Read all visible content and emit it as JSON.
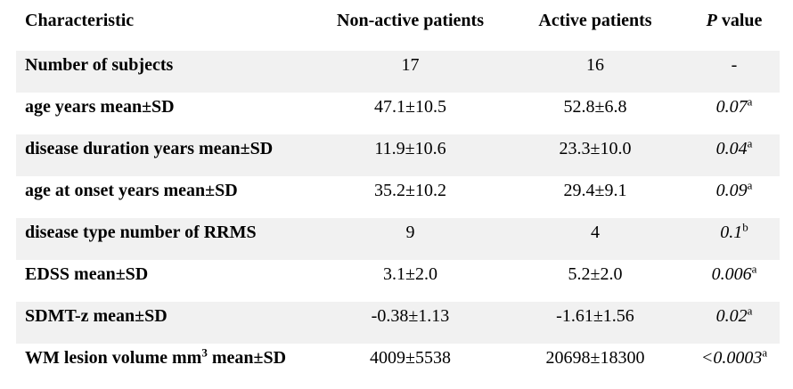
{
  "page": {
    "background_color": "#ffffff",
    "shaded_row_color": "#f1f1f1",
    "text_color": "#000000"
  },
  "table": {
    "header": {
      "characteristic": "Characteristic",
      "non_active": "Non-active patients",
      "active": "Active patients",
      "p_italic": "P",
      "p_rest": " value"
    },
    "rows": [
      {
        "label": "Number of subjects",
        "label_sup": "",
        "label_rest": "",
        "non_active": "17",
        "active": "16",
        "p": "-",
        "p_sup": "",
        "p_italic": false,
        "shaded": true
      },
      {
        "label": "age years mean±SD",
        "label_sup": "",
        "label_rest": "",
        "non_active": "47.1±10.5",
        "active": "52.8±6.8",
        "p": "0.07",
        "p_sup": "a",
        "p_italic": true,
        "shaded": false
      },
      {
        "label": "disease duration years mean±SD",
        "label_sup": "",
        "label_rest": "",
        "non_active": "11.9±10.6",
        "active": "23.3±10.0",
        "p": "0.04",
        "p_sup": "a",
        "p_italic": true,
        "shaded": true
      },
      {
        "label": "age at onset years mean±SD",
        "label_sup": "",
        "label_rest": "",
        "non_active": "35.2±10.2",
        "active": "29.4±9.1",
        "p": "0.09",
        "p_sup": "a",
        "p_italic": true,
        "shaded": false
      },
      {
        "label": "disease type number of RRMS",
        "label_sup": "",
        "label_rest": "",
        "non_active": "9",
        "active": "4",
        "p": "0.1",
        "p_sup": "b",
        "p_italic": true,
        "shaded": true
      },
      {
        "label": "EDSS mean±SD",
        "label_sup": "",
        "label_rest": "",
        "non_active": "3.1±2.0",
        "active": "5.2±2.0",
        "p": "0.006",
        "p_sup": "a",
        "p_italic": true,
        "shaded": false
      },
      {
        "label": "SDMT-z mean±SD",
        "label_sup": "",
        "label_rest": "",
        "non_active": "-0.38±1.13",
        "active": "-1.61±1.56",
        "p": "0.02",
        "p_sup": "a",
        "p_italic": true,
        "shaded": true
      },
      {
        "label": "WM lesion volume mm",
        "label_sup": "3",
        "label_rest": " mean±SD",
        "non_active": "4009±5538",
        "active": "20698±18300",
        "p": "<0.0003",
        "p_sup": "a",
        "p_italic": true,
        "shaded": false
      }
    ]
  }
}
